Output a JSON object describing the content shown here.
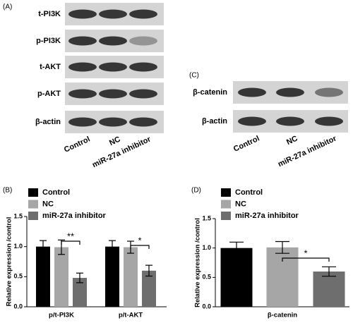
{
  "blot_a": {
    "label": "(A)",
    "rows": [
      "t-PI3K",
      "p-PI3K",
      "t-AKT",
      "p-AKT",
      "β-actin"
    ],
    "lanes": [
      "Control",
      "NC",
      "miR-27a inhibitor"
    ]
  },
  "blot_c": {
    "label": "(C)",
    "rows": [
      "β-catenin",
      "β-actin"
    ],
    "lanes": [
      "Control",
      "NC",
      "miR-27a inhibitor"
    ]
  },
  "chart_data": [
    {
      "type": "bar",
      "panel_label": "(B)",
      "y_label": "Relative expression /control",
      "categories": [
        "p/t-PI3K",
        "p/t-AKT"
      ],
      "series": [
        {
          "name": "Control",
          "color": "#000000",
          "values": [
            1.0,
            1.0
          ],
          "errors": [
            0.1,
            0.1
          ]
        },
        {
          "name": "NC",
          "color": "#a6a6a6",
          "values": [
            0.99,
            0.99
          ],
          "errors": [
            0.12,
            0.1
          ]
        },
        {
          "name": "miR-27a inhibitor",
          "color": "#6e6e6e",
          "values": [
            0.48,
            0.6
          ],
          "errors": [
            0.08,
            0.09
          ]
        }
      ],
      "ylim": [
        0,
        1.5
      ],
      "yticks": [
        {
          "value": 0,
          "label": "0.0"
        },
        {
          "value": 0.5,
          "label": "0.5"
        },
        {
          "value": 1,
          "label": "1.0"
        },
        {
          "value": 1.5,
          "label": "1.5"
        }
      ],
      "annotations": [
        "**",
        "*"
      ]
    },
    {
      "type": "bar",
      "panel_label": "(D)",
      "y_label": "Relative expression /control",
      "categories": [
        "β-catenin"
      ],
      "series": [
        {
          "name": "Control",
          "color": "#000000",
          "values": [
            1.0
          ],
          "errors": [
            0.1
          ]
        },
        {
          "name": "NC",
          "color": "#a6a6a6",
          "values": [
            1.01
          ],
          "errors": [
            0.1
          ]
        },
        {
          "name": "miR-27a inhibitor",
          "color": "#6e6e6e",
          "values": [
            0.6
          ],
          "errors": [
            0.08
          ]
        }
      ],
      "ylim": [
        0,
        1.5
      ],
      "yticks": [
        {
          "value": 0,
          "label": "0.0"
        },
        {
          "value": 0.5,
          "label": "0.5"
        },
        {
          "value": 1,
          "label": "1.0"
        },
        {
          "value": 1.5,
          "label": "1.5"
        }
      ],
      "annotations": [
        "*"
      ]
    }
  ]
}
